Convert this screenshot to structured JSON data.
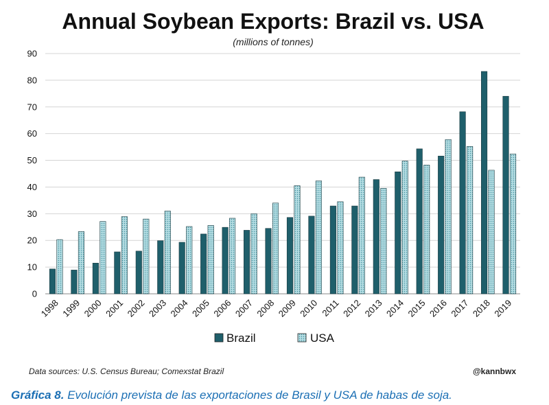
{
  "chart_data": {
    "type": "bar",
    "title": "Annual Soybean Exports: Brazil vs. USA",
    "subtitle": "(millions of tonnes)",
    "categories": [
      "1998",
      "1999",
      "2000",
      "2001",
      "2002",
      "2003",
      "2004",
      "2005",
      "2006",
      "2007",
      "2008",
      "2009",
      "2010",
      "2011",
      "2012",
      "2013",
      "2014",
      "2015",
      "2016",
      "2017",
      "2018",
      "2019"
    ],
    "series": [
      {
        "name": "Brazil",
        "color": "#1f5f6b",
        "pattern": "solid",
        "values": [
          9.3,
          8.9,
          11.5,
          15.7,
          16.0,
          19.9,
          19.3,
          22.4,
          24.9,
          23.8,
          24.5,
          28.6,
          29.1,
          32.9,
          32.9,
          42.8,
          45.7,
          54.3,
          51.6,
          68.2,
          83.3,
          74.0
        ]
      },
      {
        "name": "USA",
        "color": "#9fd0d8",
        "pattern": "dotted",
        "values": [
          20.3,
          23.3,
          27.1,
          28.9,
          28.0,
          31.0,
          25.2,
          25.6,
          28.3,
          30.0,
          34.0,
          40.5,
          42.3,
          34.5,
          43.7,
          39.5,
          49.7,
          48.2,
          57.8,
          55.2,
          46.3,
          52.4
        ]
      }
    ],
    "ylim": [
      0,
      90
    ],
    "yticks": [
      0,
      10,
      20,
      30,
      40,
      50,
      60,
      70,
      80,
      90
    ],
    "grid": true,
    "legend": "bottom-center",
    "xlabel": "",
    "ylabel": ""
  },
  "footer": {
    "source": "Data sources: U.S. Census Bureau; Comexstat Brazil",
    "handle": "@kannbwx"
  },
  "caption": {
    "lead": "Gráfica 8.",
    "text": " Evolución prevista de las exportaciones de Brasil y USA de habas de soja."
  }
}
